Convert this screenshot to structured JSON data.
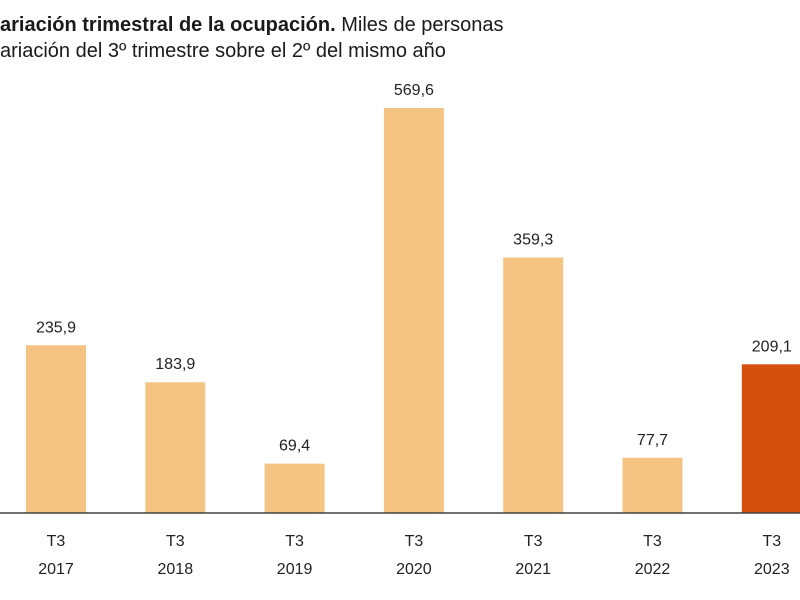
{
  "header": {
    "title_bold": "ariación trimestral de la ocupación.",
    "title_rest": " Miles de personas",
    "subtitle": "ariación del 3º trimestre sobre el 2º del mismo año"
  },
  "colors": {
    "bar": "#f5c482",
    "highlight_bar": "#d4500f",
    "baseline": "#404040",
    "text": "#222222"
  },
  "chart_data": {
    "type": "bar",
    "title": "ariación trimestral de la ocupación. Miles de personas",
    "subtitle": "ariación del 3º trimestre sobre el 2º del mismo año",
    "categories": [
      [
        "T3",
        "2017"
      ],
      [
        "T3",
        "2018"
      ],
      [
        "T3",
        "2019"
      ],
      [
        "T3",
        "2020"
      ],
      [
        "T3",
        "2021"
      ],
      [
        "T3",
        "2022"
      ],
      [
        "T3",
        "2023"
      ]
    ],
    "values": [
      235.9,
      183.9,
      69.4,
      569.6,
      359.3,
      77.7,
      209.1
    ],
    "value_labels": [
      "235,9",
      "183,9",
      "69,4",
      "569,6",
      "359,3",
      "77,7",
      "209,1"
    ],
    "highlight_index": 6,
    "ylim": [
      0,
      569.6
    ],
    "grid": false,
    "legend": "none"
  }
}
